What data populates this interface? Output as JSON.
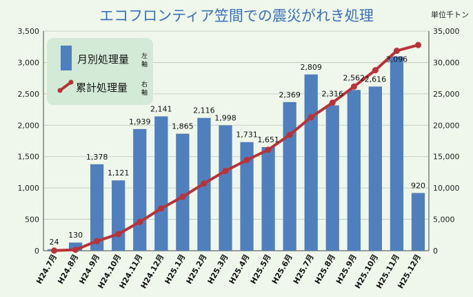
{
  "chart_data": {
    "type": "bar+line",
    "title": "エコフロンティア笠間での震災がれき処理",
    "unit_label": "単位千トン",
    "categories": [
      "H24.7月",
      "H24.8月",
      "H24.9月",
      "H24.10月",
      "H24.11月",
      "H24.12月",
      "H25.1月",
      "H25.2月",
      "H25.3月",
      "H25.4月",
      "H25.5月",
      "H25.6月",
      "H25.7月",
      "H25.8月",
      "H25.9月",
      "H25.10月",
      "H25.11月",
      "H25.12月"
    ],
    "series": [
      {
        "name": "月別処理量",
        "axis_note": "左軸",
        "type": "bar",
        "color": "#4f7fbd",
        "values": [
          24,
          130,
          1378,
          1121,
          1939,
          2141,
          1865,
          2116,
          1998,
          1731,
          1651,
          2369,
          2809,
          2316,
          2562,
          2616,
          3096,
          920
        ],
        "labels": [
          "24",
          "130",
          "1,378",
          "1,121",
          "1,939",
          "2,141",
          "1,865",
          "2,116",
          "1,998",
          "1,731",
          "1,651",
          "2,369",
          "2,809",
          "2,316",
          "2,562",
          "2,616",
          "3,096",
          "920"
        ]
      },
      {
        "name": "累計処理量",
        "axis_note": "右軸",
        "type": "line",
        "color": "#b8323a",
        "values": [
          24,
          154,
          1532,
          2653,
          4592,
          6733,
          8598,
          10714,
          12712,
          14443,
          16094,
          18463,
          21272,
          23588,
          26150,
          28766,
          31862,
          32782
        ]
      }
    ],
    "y_left": {
      "min": 0,
      "max": 3500,
      "step": 500,
      "ticks": [
        "0",
        "500",
        "1,000",
        "1,500",
        "2,000",
        "2,500",
        "3,000",
        "3,500"
      ]
    },
    "y_right": {
      "min": 0,
      "max": 35000,
      "step": 5000,
      "ticks": [
        "0",
        "5,000",
        "10,000",
        "15,000",
        "20,000",
        "25,000",
        "30,000",
        "35,000"
      ]
    },
    "grid": true,
    "legend": "top-left"
  }
}
